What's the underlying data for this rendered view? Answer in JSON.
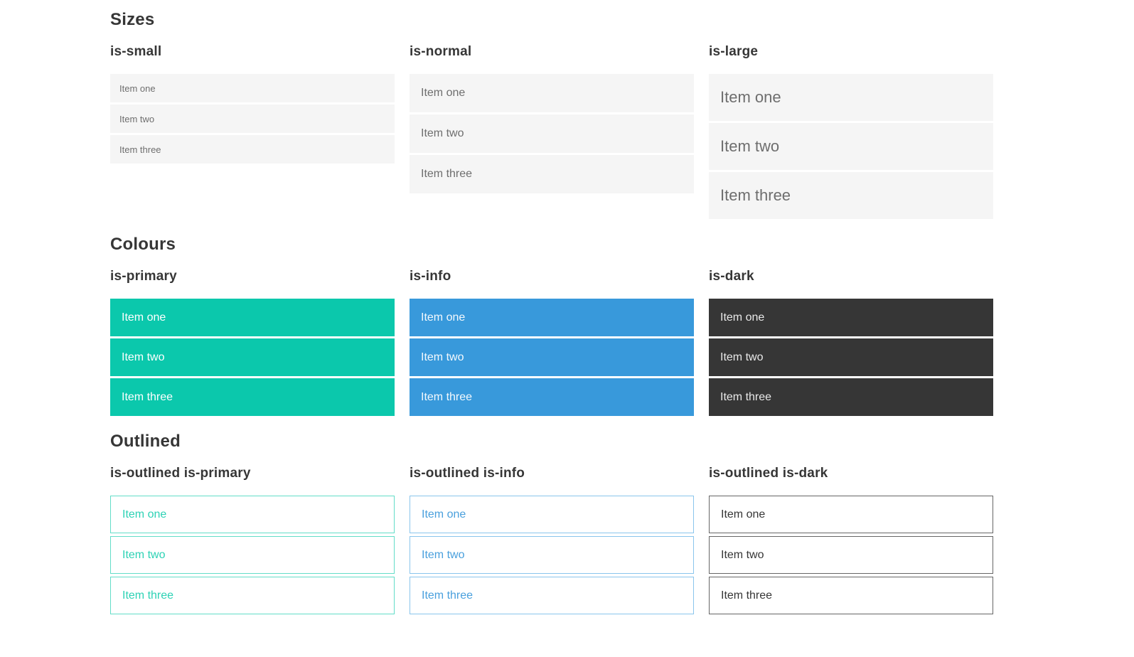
{
  "colors": {
    "primary": "#0bc8ac",
    "info": "#3899db",
    "dark": "#363636",
    "light_item_bg": "#f5f5f5",
    "muted_text": "#6e6e6e",
    "heading_text": "#363636",
    "outlined_primary_border": "#63ddc8",
    "outlined_info_border": "#8ac5ec",
    "outlined_dark_border": "#666666"
  },
  "sections": [
    {
      "title": "Sizes",
      "groups": [
        {
          "label": "is-small",
          "items": [
            "Item one",
            "Item two",
            "Item three"
          ]
        },
        {
          "label": "is-normal",
          "items": [
            "Item one",
            "Item two",
            "Item three"
          ]
        },
        {
          "label": "is-large",
          "items": [
            "Item one",
            "Item two",
            "Item three"
          ]
        }
      ]
    },
    {
      "title": "Colours",
      "groups": [
        {
          "label": "is-primary",
          "items": [
            "Item one",
            "Item two",
            "Item three"
          ]
        },
        {
          "label": "is-info",
          "items": [
            "Item one",
            "Item two",
            "Item three"
          ]
        },
        {
          "label": "is-dark",
          "items": [
            "Item one",
            "Item two",
            "Item three"
          ]
        }
      ]
    },
    {
      "title": "Outlined",
      "groups": [
        {
          "label": "is-outlined is-primary",
          "items": [
            "Item one",
            "Item two",
            "Item three"
          ]
        },
        {
          "label": "is-outlined is-info",
          "items": [
            "Item one",
            "Item two",
            "Item three"
          ]
        },
        {
          "label": "is-outlined is-dark",
          "items": [
            "Item one",
            "Item two",
            "Item three"
          ]
        }
      ]
    }
  ]
}
